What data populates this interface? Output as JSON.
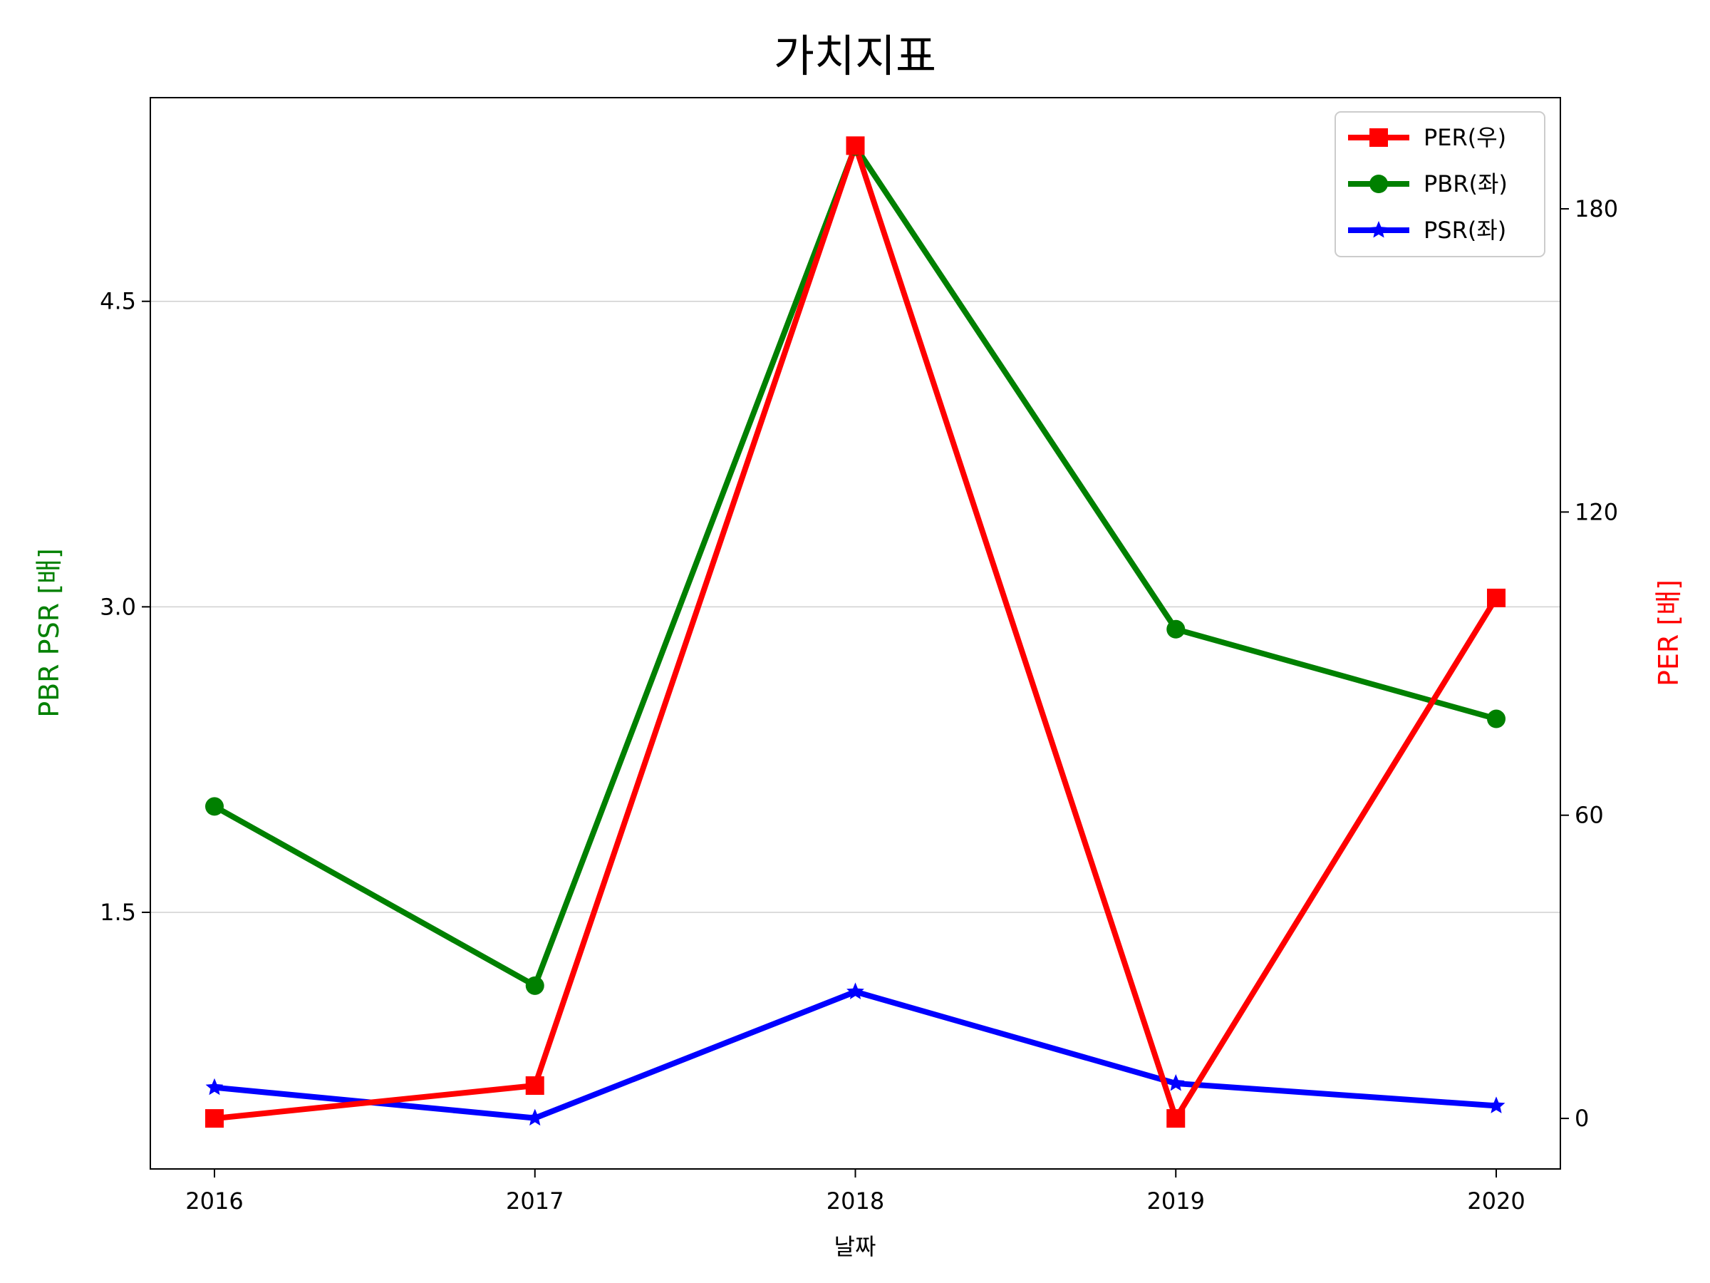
{
  "chart_data": {
    "type": "line",
    "title": "가치지표",
    "xlabel": "날짜",
    "ylabel_left": "PBR PSR [배]",
    "ylabel_right": "PER [배]",
    "categories": [
      "2016",
      "2017",
      "2018",
      "2019",
      "2020"
    ],
    "y_left": {
      "ticks": [
        "1.5",
        "3.0",
        "4.5"
      ],
      "ylim": [
        0.24,
        5.5
      ]
    },
    "y_right": {
      "ticks": [
        "0",
        "60",
        "120",
        "180"
      ],
      "ylim": [
        -10,
        202
      ]
    },
    "grid": "horizontal (left axis)",
    "legend_position": "top-right",
    "series": [
      {
        "name": "PER(우)",
        "axis": "right",
        "color": "#ff0000",
        "marker": "square",
        "values": [
          0,
          6.5,
          192.5,
          0,
          103
        ]
      },
      {
        "name": "PBR(좌)",
        "axis": "left",
        "color": "#008000",
        "marker": "circle",
        "values": [
          2.02,
          1.14,
          5.26,
          2.89,
          2.45
        ]
      },
      {
        "name": "PSR(좌)",
        "axis": "left",
        "color": "#0000ff",
        "marker": "star",
        "values": [
          0.64,
          0.49,
          1.11,
          0.66,
          0.55
        ]
      }
    ]
  }
}
